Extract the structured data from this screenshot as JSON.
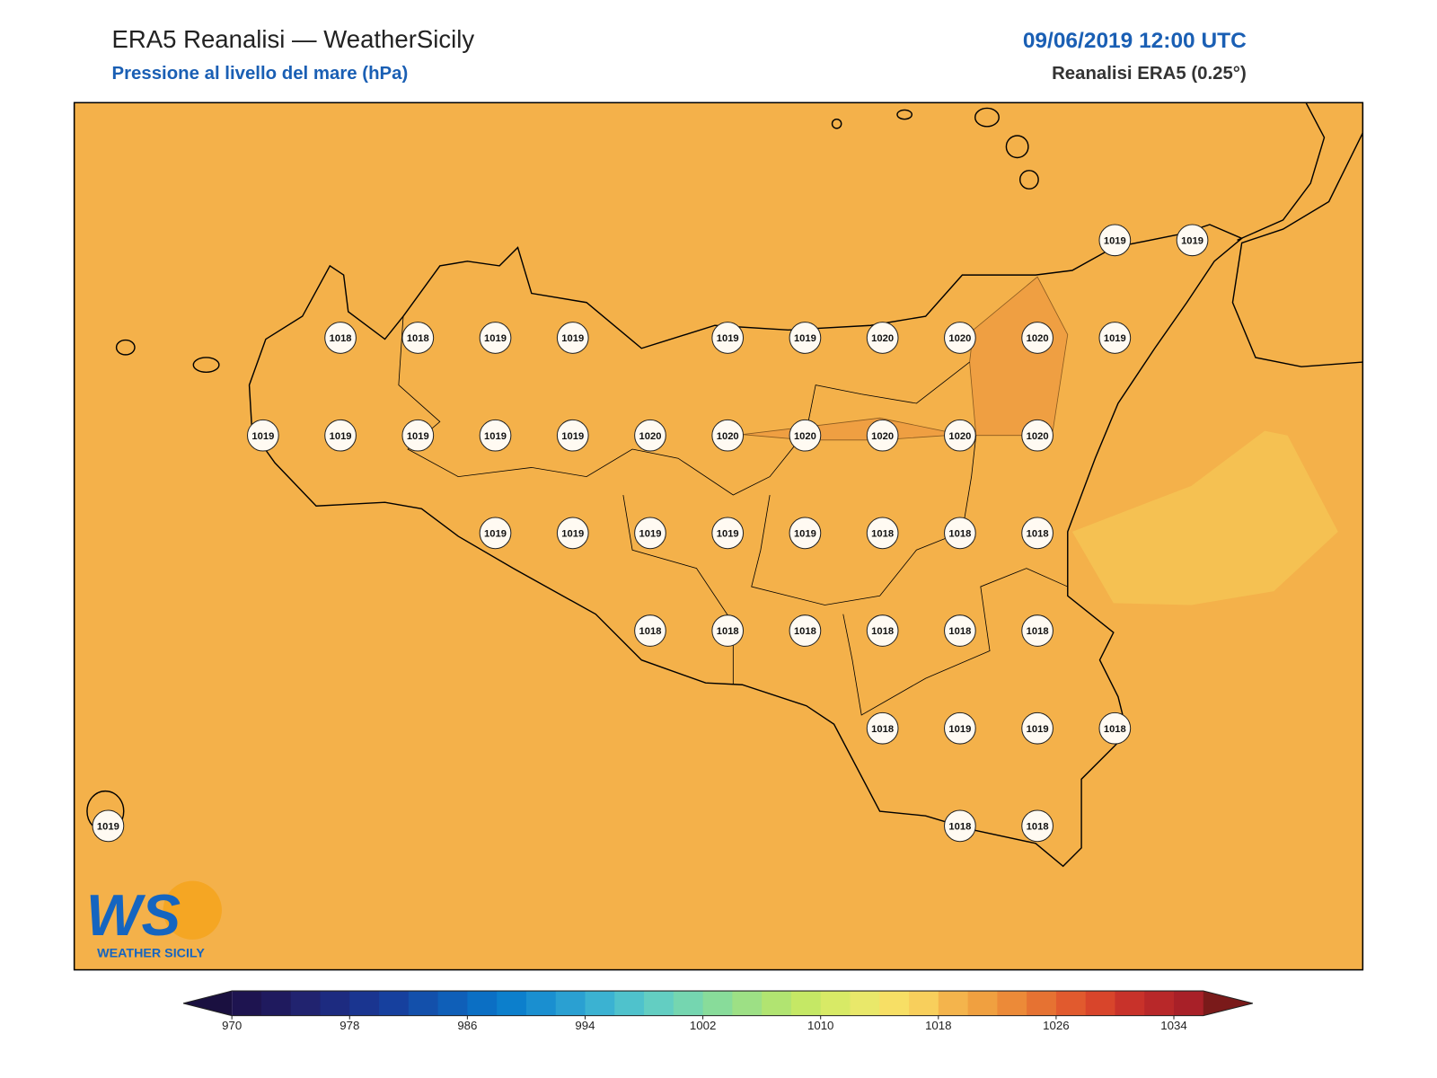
{
  "header": {
    "title": "ERA5 Reanalisi — WeatherSicily",
    "subtitle": "Pressione al livello del mare (hPa)",
    "datetime": "09/06/2019 12:00 UTC",
    "source": "Reanalisi ERA5 (0.25°)"
  },
  "stations": [
    1019,
    1019,
    1018,
    1018,
    1019,
    1019,
    1019,
    1019,
    1020,
    1020,
    1020,
    1019,
    1019,
    1019,
    1019,
    1019,
    1019,
    1020,
    1020,
    1020,
    1020,
    1020,
    1020,
    1019,
    1019,
    1019,
    1019,
    1019,
    1018,
    1018,
    1018,
    1018,
    1018,
    1018,
    1018,
    1018,
    1018,
    1018,
    1019,
    1019,
    1018,
    1019,
    1018,
    1018
  ],
  "colorbar": {
    "lim": [
      970,
      1036
    ],
    "ticks": [
      970,
      978,
      986,
      994,
      1002,
      1010,
      1018,
      1026,
      1034
    ],
    "colors": [
      "#1e1450",
      "#1f1a5e",
      "#21236f",
      "#1d2b80",
      "#1a3590",
      "#16409e",
      "#1350ab",
      "#0f5fb8",
      "#0b6fc4",
      "#0c7fcc",
      "#1a8fd0",
      "#2aa0d2",
      "#3bb2d2",
      "#4fc2cc",
      "#63cec2",
      "#75d6b0",
      "#88dc9a",
      "#9de085",
      "#b1e471",
      "#c5e865",
      "#d8ea66",
      "#e9e86a",
      "#f7df65",
      "#f8cf5c",
      "#f4b44c",
      "#f0a040",
      "#ec8a38",
      "#e67232",
      "#e15a2e",
      "#d8452b",
      "#c8322a",
      "#b82829",
      "#a82028"
    ],
    "under": "#1a1040",
    "over": "#7a1a1a"
  },
  "logo": {
    "mark": "WS",
    "text": "WEATHER SICILY"
  }
}
